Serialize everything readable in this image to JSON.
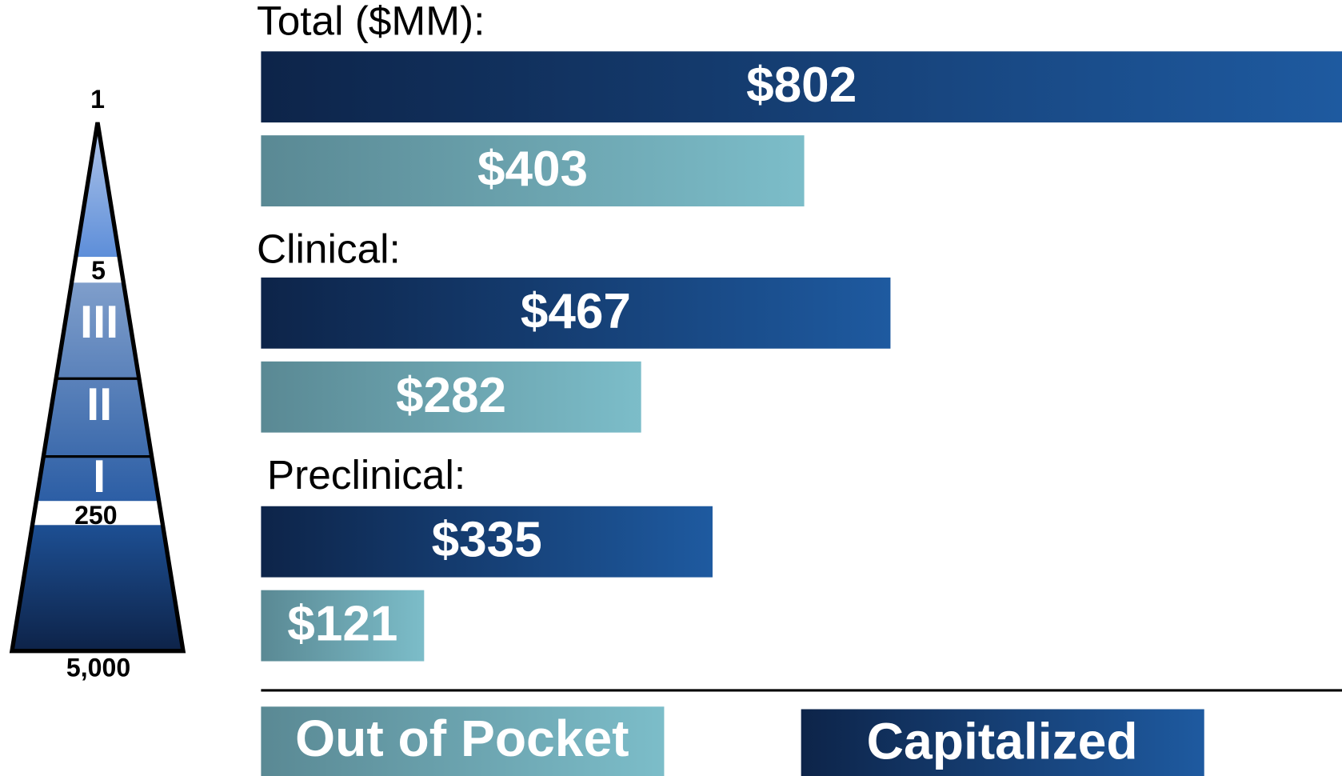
{
  "chart_data": {
    "type": "bar",
    "orientation": "horizontal",
    "categories": [
      "Total ($MM):",
      "Clinical:",
      "Preclinical:"
    ],
    "series": [
      {
        "name": "Capitalized",
        "color": [
          "#0d2449",
          "#1e5aa0"
        ],
        "values": [
          802,
          467,
          335
        ],
        "value_labels": [
          "$802",
          "$467",
          "$335"
        ]
      },
      {
        "name": "Out of Pocket",
        "color": [
          "#5a8994",
          "#7cbdc9"
        ],
        "values": [
          403,
          282,
          121
        ],
        "value_labels": [
          "$403",
          "$282",
          "$121"
        ]
      }
    ]
  },
  "funnel": {
    "labels": [
      "1",
      "5",
      "III",
      "II",
      "I",
      "250",
      "5,000"
    ]
  }
}
